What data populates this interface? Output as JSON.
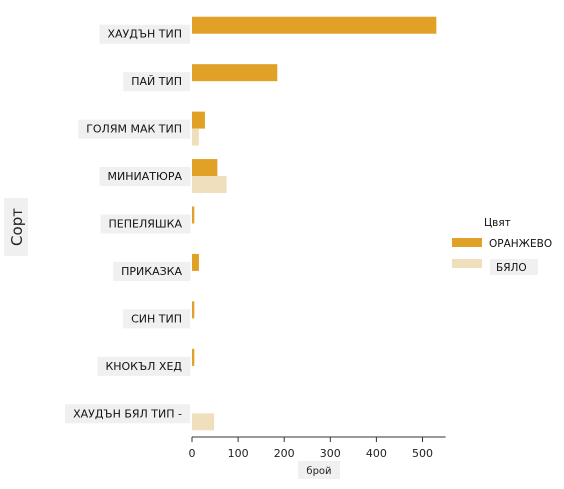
{
  "chart_data": {
    "type": "bar",
    "orientation": "horizontal",
    "categories": [
      "ХАУДЪН ТИП",
      "ПАЙ ТИП",
      "ГОЛЯМ МАК ТИП",
      "МИНИАТЮРА",
      "ПЕПЕЛЯШКА",
      "ПРИКАЗКА",
      "СИН ТИП",
      "КНОКЪЛ ХЕД",
      "ХАУДЪН БЯЛ ТИП -"
    ],
    "series": [
      {
        "name": "ОРАНЖЕВО",
        "color": "#e0a126",
        "values": [
          530,
          185,
          28,
          55,
          5,
          15,
          5,
          5,
          0
        ]
      },
      {
        "name": "БЯЛО",
        "color": "#f0dfbd",
        "values": [
          0,
          0,
          15,
          75,
          0,
          0,
          0,
          0,
          48
        ]
      }
    ],
    "xlabel": "брой",
    "ylabel": "Сорт",
    "xticks": [
      0,
      100,
      200,
      300,
      400,
      500
    ],
    "xlim": [
      0,
      550
    ],
    "legend": {
      "title": "Цвят",
      "placement": "right"
    },
    "grid": false
  }
}
